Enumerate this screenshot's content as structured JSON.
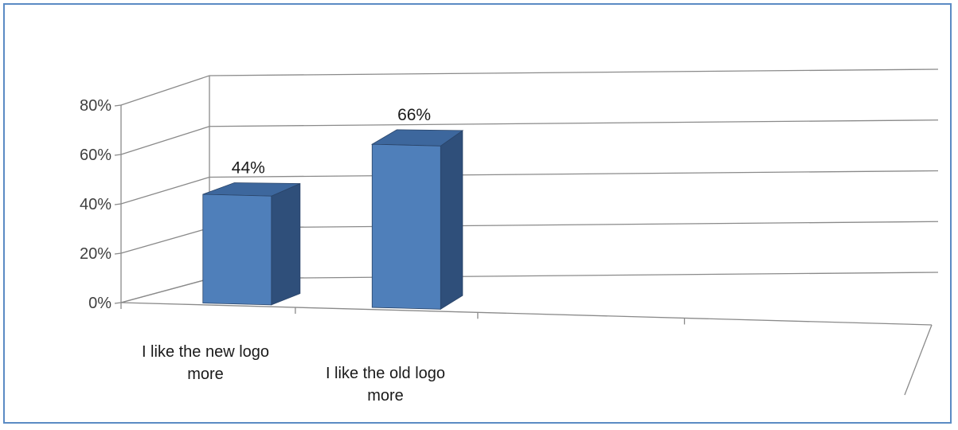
{
  "chart_data": {
    "type": "bar",
    "categories": [
      "I like the new logo more",
      "I like the old logo more"
    ],
    "category_lines": [
      [
        "I like the new logo",
        "more"
      ],
      [
        "I like the old logo",
        "more"
      ]
    ],
    "values": [
      44,
      66
    ],
    "data_labels": [
      "44%",
      "66%"
    ],
    "yticks": [
      "0%",
      "20%",
      "40%",
      "60%",
      "80%"
    ],
    "ylim": [
      0,
      80
    ],
    "grid": true,
    "legend": "none",
    "title": "",
    "xlabel": "",
    "ylabel": "",
    "colors": {
      "front": "#4f7fba",
      "side": "#2f4f7a",
      "top": "#3d679d",
      "grid": "#8a8a8a"
    }
  }
}
